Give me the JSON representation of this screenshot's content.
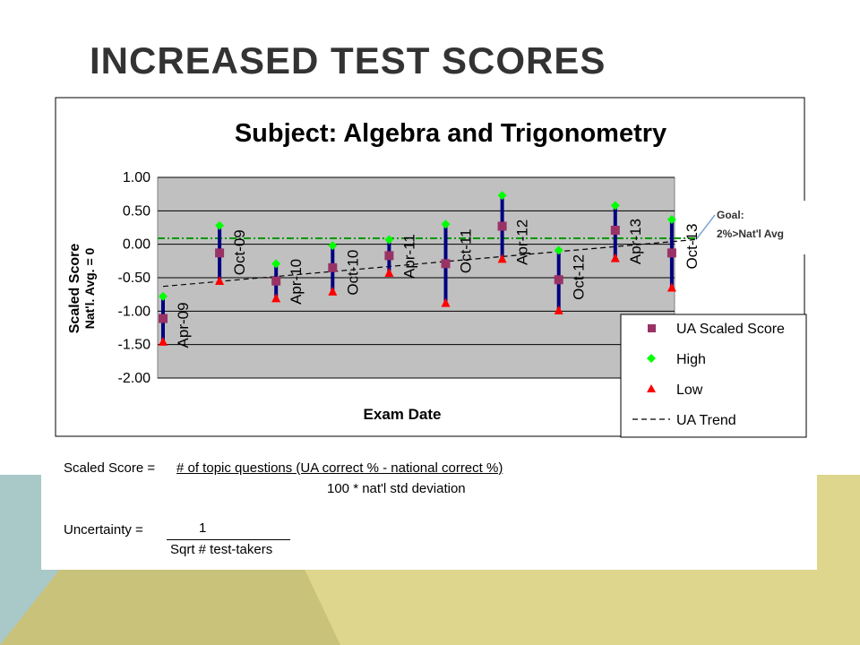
{
  "slide": {
    "title": "INCREASED TEST SCORES"
  },
  "colors": {
    "plot_bg": "#c0c0c0",
    "error_bar": "#000080",
    "score_marker": "#993366",
    "high_marker": "#00ff00",
    "low_marker": "#ff0000",
    "goal_line": "#009900",
    "trend_line": "#000000",
    "bg_teal": "#a9c8c8",
    "bg_olive": "#c9c27a",
    "bg_yellow": "#ddd68c"
  },
  "chart_data": {
    "type": "scatter",
    "title": "Subject: Algebra and Trigonometry",
    "xlabel": "Exam Date",
    "ylabel": "Scaled Score",
    "ylabel2": "Nat'l. Avg. = 0",
    "ylim": [
      -2.0,
      1.0
    ],
    "yticks": [
      "1.00",
      "0.50",
      "0.00",
      "-0.50",
      "-1.00",
      "-1.50",
      "-2.00"
    ],
    "grid": true,
    "legend_position": "bottom-right",
    "categories": [
      "Apr-09",
      "Oct-09",
      "Apr-10",
      "Oct-10",
      "Apr-11",
      "Oct-11",
      "Apr-12",
      "Oct-12",
      "Apr-13",
      "Oct-13"
    ],
    "series": [
      {
        "name": "UA Scaled Score",
        "values": [
          -1.11,
          -0.13,
          -0.55,
          -0.35,
          -0.17,
          -0.29,
          0.27,
          -0.53,
          0.21,
          -0.13
        ]
      },
      {
        "name": "High",
        "values": [
          -0.78,
          0.28,
          -0.29,
          -0.02,
          0.07,
          0.3,
          0.73,
          -0.09,
          0.58,
          0.37
        ]
      },
      {
        "name": "Low",
        "values": [
          -1.45,
          -0.54,
          -0.8,
          -0.7,
          -0.42,
          -0.87,
          -0.21,
          -0.98,
          -0.2,
          -0.64
        ]
      }
    ],
    "trend": {
      "name": "UA Trend",
      "start": -0.63,
      "end": 0.07
    },
    "goal": {
      "value": 0.09,
      "label_line1": "Goal:",
      "label_line2": "2%>Nat'l Avg"
    }
  },
  "formulas": {
    "scaled": {
      "label": "Scaled Score =",
      "numerator": "# of topic questions (UA correct % - national correct %)",
      "denominator": "100 * nat'l std deviation"
    },
    "uncertainty": {
      "label": "Uncertainty =",
      "numerator": "1",
      "denominator": "Sqrt # test-takers"
    }
  }
}
